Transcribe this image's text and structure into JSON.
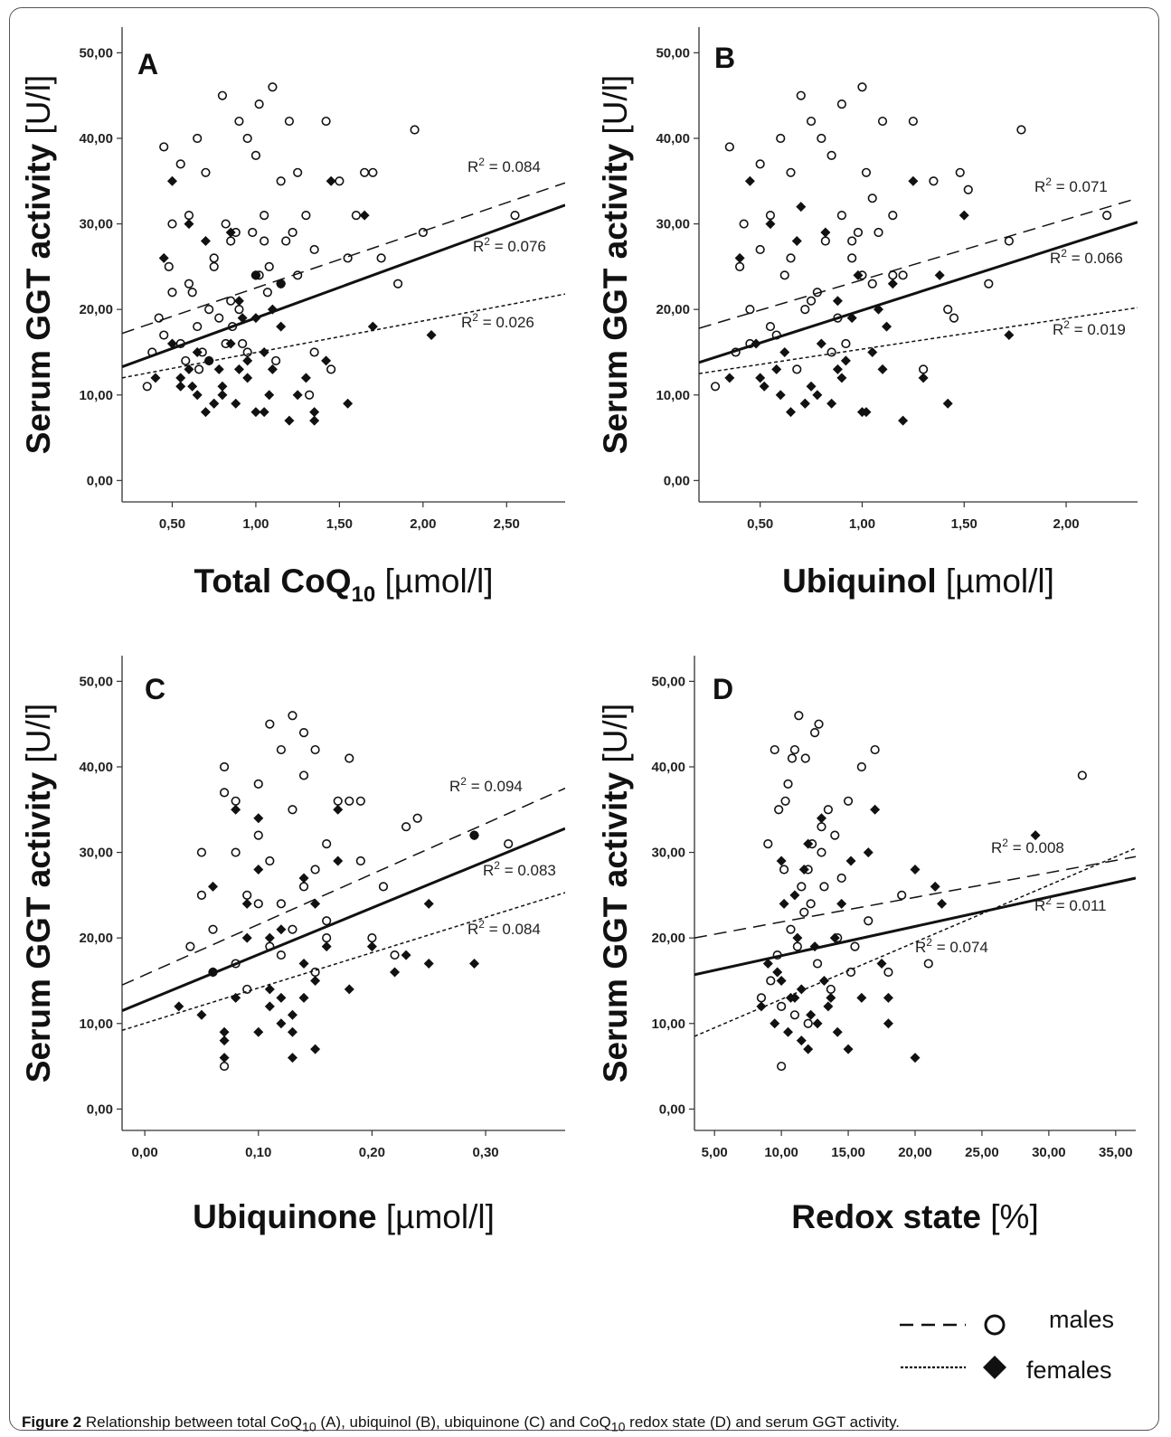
{
  "caption": {
    "label": "Figure 2",
    "text": "Relationship between total CoQ",
    "sub1": "10",
    "mid": " (A), ubiquinol (B), ubiquinone (C) and CoQ",
    "sub2": "10",
    "end": " redox state (D) and serum GGT activity."
  },
  "legend": {
    "males": "males",
    "females": "females"
  },
  "chart_data": [
    {
      "type": "scatter",
      "panel": "A",
      "ylabel": "Serum GGT activity",
      "ylabel_unit": "[U/l]",
      "xlabel": "Total CoQ",
      "xlabel_sub": "10",
      "xlabel_unit": "[µmol/l]",
      "ylim": [
        -2.5,
        53
      ],
      "xlim": [
        0.2,
        2.85
      ],
      "xticks": [
        0.5,
        1.0,
        1.5,
        2.0,
        2.5
      ],
      "xtick_labels": [
        "0,50",
        "1,00",
        "1,50",
        "2,00",
        "2,50"
      ],
      "yticks": [
        0,
        10,
        20,
        30,
        40,
        50
      ],
      "ytick_labels": [
        "0,00",
        "10,00",
        "20,00",
        "30,00",
        "40,00",
        "50,00"
      ],
      "fit_lines": [
        {
          "group": "males",
          "style": "dashed",
          "x": [
            0.2,
            2.85
          ],
          "y": [
            17.2,
            34.8
          ],
          "label": "R2 = 0.084",
          "r2": 0.084
        },
        {
          "group": "all",
          "style": "solid",
          "x": [
            0.2,
            2.85
          ],
          "y": [
            13.3,
            32.2
          ],
          "label": "R2 = 0.076",
          "r2": 0.076
        },
        {
          "group": "females",
          "style": "dotted",
          "x": [
            0.2,
            2.85
          ],
          "y": [
            12.0,
            21.8
          ],
          "label": "R2 = 0.026",
          "r2": 0.026
        }
      ],
      "males": {
        "x": [
          0.35,
          0.42,
          0.45,
          0.5,
          0.5,
          0.55,
          0.6,
          0.6,
          0.65,
          0.7,
          0.72,
          0.75,
          0.8,
          0.82,
          0.85,
          0.9,
          0.9,
          0.95,
          1.0,
          1.0,
          1.02,
          1.05,
          1.07,
          1.1,
          1.15,
          1.2,
          1.25,
          1.3,
          1.35,
          1.42,
          1.5,
          1.55,
          1.6,
          1.65,
          1.7,
          1.75,
          1.85,
          1.95,
          2.0,
          2.55,
          0.55,
          0.65,
          0.75,
          0.85,
          0.95,
          1.05,
          1.15,
          1.25,
          1.35,
          0.45,
          0.62,
          0.78,
          0.88,
          0.98,
          1.08,
          1.18,
          0.58,
          0.68,
          0.92,
          1.12,
          0.38,
          0.48,
          0.72,
          1.22,
          1.32,
          1.45,
          0.82,
          1.02,
          0.66,
          0.86
        ],
        "y": [
          11,
          19,
          39,
          30,
          22,
          37,
          31,
          23,
          40,
          36,
          20,
          25,
          45,
          30,
          28,
          42,
          20,
          40,
          38,
          24,
          44,
          31,
          22,
          46,
          35,
          42,
          36,
          31,
          27,
          42,
          35,
          26,
          31,
          36,
          36,
          26,
          23,
          41,
          29,
          31,
          16,
          18,
          26,
          21,
          15,
          28,
          23,
          24,
          15,
          17,
          22,
          19,
          29,
          29,
          25,
          28,
          14,
          15,
          16,
          14,
          15,
          25,
          14,
          29,
          10,
          13,
          16,
          24,
          13,
          18
        ]
      },
      "females": {
        "x": [
          0.4,
          0.45,
          0.5,
          0.55,
          0.6,
          0.65,
          0.7,
          0.72,
          0.75,
          0.8,
          0.85,
          0.88,
          0.9,
          0.95,
          1.0,
          1.0,
          1.05,
          1.1,
          1.15,
          1.2,
          1.25,
          1.3,
          1.35,
          1.45,
          1.55,
          1.65,
          1.7,
          2.05,
          0.5,
          0.6,
          0.7,
          0.8,
          0.9,
          1.0,
          1.1,
          0.55,
          0.65,
          0.75,
          0.85,
          0.95,
          1.05,
          1.15,
          0.62,
          0.78,
          0.92,
          1.08,
          1.35,
          1.42
        ],
        "y": [
          12,
          26,
          35,
          12,
          30,
          10,
          8,
          14,
          9,
          11,
          16,
          9,
          21,
          12,
          19,
          8,
          15,
          13,
          23,
          7,
          10,
          12,
          8,
          35,
          9,
          31,
          18,
          17,
          16,
          13,
          28,
          10,
          13,
          24,
          20,
          11,
          15,
          9,
          29,
          14,
          8,
          18,
          11,
          13,
          19,
          10,
          7,
          14
        ]
      }
    },
    {
      "type": "scatter",
      "panel": "B",
      "ylabel": "Serum GGT activity",
      "ylabel_unit": "[U/l]",
      "xlabel": "Ubiquinol",
      "xlabel_unit": "[µmol/l]",
      "ylim": [
        -2.5,
        53
      ],
      "xlim": [
        0.2,
        2.35
      ],
      "xticks": [
        0.5,
        1.0,
        1.5,
        2.0
      ],
      "xtick_labels": [
        "0,50",
        "1,00",
        "1,50",
        "2,00"
      ],
      "yticks": [
        0,
        10,
        20,
        30,
        40,
        50
      ],
      "ytick_labels": [
        "0,00",
        "10,00",
        "20,00",
        "30,00",
        "40,00",
        "50,00"
      ],
      "fit_lines": [
        {
          "group": "males",
          "style": "dashed",
          "x": [
            0.2,
            2.35
          ],
          "y": [
            17.8,
            33.0
          ],
          "label": "R2 = 0.071",
          "r2": 0.071
        },
        {
          "group": "all",
          "style": "solid",
          "x": [
            0.2,
            2.35
          ],
          "y": [
            13.8,
            30.2
          ],
          "label": "R2 = 0.066",
          "r2": 0.066
        },
        {
          "group": "females",
          "style": "dotted",
          "x": [
            0.2,
            2.35
          ],
          "y": [
            12.5,
            20.2
          ],
          "label": "R2 = 0.019",
          "r2": 0.019
        },
        {
          "group": "",
          "style": "none",
          "x": [],
          "y": [],
          "label": "",
          "r2": 0
        }
      ],
      "males": {
        "x": [
          0.28,
          0.35,
          0.4,
          0.42,
          0.45,
          0.5,
          0.5,
          0.55,
          0.6,
          0.62,
          0.65,
          0.7,
          0.72,
          0.75,
          0.8,
          0.82,
          0.85,
          0.9,
          0.9,
          0.95,
          1.0,
          1.0,
          1.02,
          1.05,
          1.1,
          1.15,
          1.2,
          1.25,
          1.35,
          1.42,
          1.48,
          1.52,
          1.62,
          1.72,
          1.78,
          2.2,
          0.45,
          0.55,
          0.65,
          0.75,
          0.85,
          0.95,
          1.05,
          1.15,
          0.38,
          0.58,
          0.78,
          0.88,
          0.98,
          1.08,
          0.68,
          0.92,
          1.3,
          1.45
        ],
        "y": [
          11,
          39,
          25,
          30,
          20,
          37,
          27,
          31,
          40,
          24,
          36,
          45,
          20,
          42,
          40,
          28,
          38,
          44,
          31,
          26,
          46,
          24,
          36,
          33,
          42,
          31,
          24,
          42,
          35,
          20,
          36,
          34,
          23,
          28,
          41,
          31,
          16,
          18,
          26,
          21,
          15,
          28,
          23,
          24,
          15,
          17,
          22,
          19,
          29,
          29,
          13,
          16,
          13,
          19
        ]
      },
      "females": {
        "x": [
          0.35,
          0.4,
          0.45,
          0.5,
          0.55,
          0.6,
          0.65,
          0.7,
          0.72,
          0.75,
          0.8,
          0.85,
          0.88,
          0.9,
          0.95,
          1.0,
          1.05,
          1.1,
          1.15,
          1.2,
          1.25,
          1.3,
          1.38,
          1.42,
          1.5,
          1.72,
          0.48,
          0.58,
          0.68,
          0.78,
          0.88,
          0.98,
          1.08,
          0.52,
          0.62,
          0.72,
          0.82,
          0.92,
          1.02,
          1.12
        ],
        "y": [
          12,
          26,
          35,
          12,
          30,
          10,
          8,
          32,
          9,
          11,
          16,
          9,
          21,
          12,
          19,
          8,
          15,
          13,
          23,
          7,
          35,
          12,
          24,
          9,
          31,
          17,
          16,
          13,
          28,
          10,
          13,
          24,
          20,
          11,
          15,
          9,
          29,
          14,
          8,
          18
        ]
      }
    },
    {
      "type": "scatter",
      "panel": "C",
      "ylabel": "Serum GGT activity",
      "ylabel_unit": "[U/l]",
      "xlabel": "Ubiquinone",
      "xlabel_unit": "[µmol/l]",
      "ylim": [
        -2.5,
        53
      ],
      "xlim": [
        -0.02,
        0.37
      ],
      "xticks": [
        0.0,
        0.1,
        0.2,
        0.3
      ],
      "xtick_labels": [
        "0,00",
        "0,10",
        "0,20",
        "0,30"
      ],
      "yticks": [
        0,
        10,
        20,
        30,
        40,
        50
      ],
      "ytick_labels": [
        "0,00",
        "10,00",
        "20,00",
        "30,00",
        "40,00",
        "50,00"
      ],
      "fit_lines": [
        {
          "group": "males",
          "style": "dashed",
          "x": [
            -0.02,
            0.37
          ],
          "y": [
            14.5,
            37.5
          ],
          "label": "R2 = 0.094",
          "r2": 0.094
        },
        {
          "group": "all",
          "style": "solid",
          "x": [
            -0.02,
            0.37
          ],
          "y": [
            11.5,
            32.8
          ],
          "label": "R2 = 0.083",
          "r2": 0.083
        },
        {
          "group": "females",
          "style": "dotted",
          "x": [
            -0.02,
            0.37
          ],
          "y": [
            9.2,
            25.3
          ],
          "label": "R2 = 0.084",
          "r2": 0.084
        }
      ],
      "males": {
        "x": [
          0.04,
          0.05,
          0.06,
          0.07,
          0.07,
          0.08,
          0.08,
          0.09,
          0.1,
          0.1,
          0.11,
          0.11,
          0.12,
          0.12,
          0.13,
          0.13,
          0.14,
          0.14,
          0.15,
          0.15,
          0.16,
          0.16,
          0.17,
          0.18,
          0.18,
          0.19,
          0.2,
          0.21,
          0.23,
          0.24,
          0.29,
          0.32,
          0.06,
          0.08,
          0.1,
          0.12,
          0.14,
          0.16,
          0.09,
          0.11,
          0.13,
          0.15,
          0.07,
          0.05,
          0.19,
          0.22
        ],
        "y": [
          19,
          30,
          16,
          37,
          40,
          36,
          30,
          25,
          32,
          38,
          45,
          29,
          42,
          24,
          46,
          35,
          44,
          39,
          42,
          28,
          31,
          22,
          36,
          41,
          36,
          29,
          20,
          26,
          33,
          34,
          32,
          31,
          21,
          17,
          24,
          18,
          26,
          20,
          14,
          19,
          21,
          16,
          5,
          25,
          36,
          18
        ]
      },
      "females": {
        "x": [
          0.03,
          0.05,
          0.06,
          0.07,
          0.07,
          0.08,
          0.09,
          0.1,
          0.1,
          0.11,
          0.12,
          0.12,
          0.13,
          0.13,
          0.14,
          0.14,
          0.15,
          0.15,
          0.16,
          0.17,
          0.18,
          0.2,
          0.22,
          0.23,
          0.25,
          0.25,
          0.29,
          0.29,
          0.06,
          0.08,
          0.1,
          0.12,
          0.14,
          0.09,
          0.11,
          0.13,
          0.15,
          0.07,
          0.17,
          0.11
        ],
        "y": [
          12,
          11,
          26,
          8,
          6,
          35,
          20,
          9,
          34,
          12,
          13,
          21,
          6,
          9,
          27,
          17,
          7,
          24,
          19,
          35,
          14,
          19,
          16,
          18,
          24,
          17,
          32,
          17,
          16,
          13,
          28,
          10,
          13,
          24,
          20,
          11,
          15,
          9,
          29,
          14
        ]
      }
    },
    {
      "type": "scatter",
      "panel": "D",
      "ylabel": "Serum GGT activity",
      "ylabel_unit": "[U/l]",
      "xlabel": "Redox state",
      "xlabel_unit": "[%]",
      "ylim": [
        -2.5,
        53
      ],
      "xlim": [
        3.5,
        36.5
      ],
      "xticks": [
        5,
        10,
        15,
        20,
        25,
        30,
        35
      ],
      "xtick_labels": [
        "5,00",
        "10,00",
        "15,00",
        "20,00",
        "25,00",
        "30,00",
        "35,00"
      ],
      "yticks": [
        0,
        10,
        20,
        30,
        40,
        50
      ],
      "ytick_labels": [
        "0,00",
        "10,00",
        "20,00",
        "30,00",
        "40,00",
        "50,00"
      ],
      "fit_lines": [
        {
          "group": "males",
          "style": "dashed",
          "x": [
            3.5,
            36.5
          ],
          "y": [
            20.0,
            29.5
          ],
          "label": "R2 = 0.008",
          "r2": 0.008
        },
        {
          "group": "all",
          "style": "solid",
          "x": [
            3.5,
            36.5
          ],
          "y": [
            15.7,
            27.0
          ],
          "label": "R2 = 0.011",
          "r2": 0.011
        },
        {
          "group": "females",
          "style": "dotted",
          "x": [
            3.5,
            36.5
          ],
          "y": [
            8.5,
            30.5
          ],
          "label": "R2 = 0.074",
          "r2": 0.074
        }
      ],
      "males": {
        "x": [
          8.5,
          9,
          9.5,
          9.8,
          10,
          10.3,
          10.5,
          10.8,
          11,
          11.3,
          11.5,
          11.8,
          12,
          12.3,
          12.5,
          12.8,
          13,
          13.5,
          14,
          14.5,
          15,
          15.5,
          16,
          16.5,
          17,
          18,
          19,
          21,
          32.5,
          9.2,
          10.2,
          11.2,
          12.2,
          13.2,
          14.2,
          15.2,
          9.7,
          10.7,
          11.7,
          12.7,
          13.7,
          10,
          11,
          12,
          13
        ],
        "y": [
          13,
          31,
          42,
          35,
          5,
          36,
          38,
          41,
          42,
          46,
          26,
          41,
          28,
          31,
          44,
          45,
          30,
          35,
          32,
          27,
          36,
          19,
          40,
          22,
          42,
          16,
          25,
          17,
          39,
          15,
          28,
          19,
          24,
          26,
          20,
          16,
          18,
          21,
          23,
          17,
          14,
          12,
          11,
          10,
          33
        ]
      },
      "females": {
        "x": [
          8.5,
          9,
          9.5,
          10,
          10,
          10.5,
          11,
          11,
          11.5,
          12,
          12,
          12.5,
          13,
          13.5,
          14,
          14.5,
          15,
          16,
          16.5,
          17,
          17.5,
          18,
          18,
          20,
          20,
          21.5,
          22,
          29,
          9.7,
          10.7,
          11.7,
          12.7,
          13.7,
          10.2,
          11.2,
          12.2,
          13.2,
          14.2,
          15.2,
          11.5
        ],
        "y": [
          12,
          17,
          10,
          15,
          29,
          9,
          25,
          13,
          8,
          31,
          7,
          19,
          34,
          12,
          20,
          24,
          7,
          13,
          30,
          35,
          17,
          13,
          10,
          28,
          6,
          26,
          24,
          32,
          16,
          13,
          28,
          10,
          13,
          24,
          20,
          11,
          15,
          9,
          29,
          14
        ]
      }
    }
  ]
}
